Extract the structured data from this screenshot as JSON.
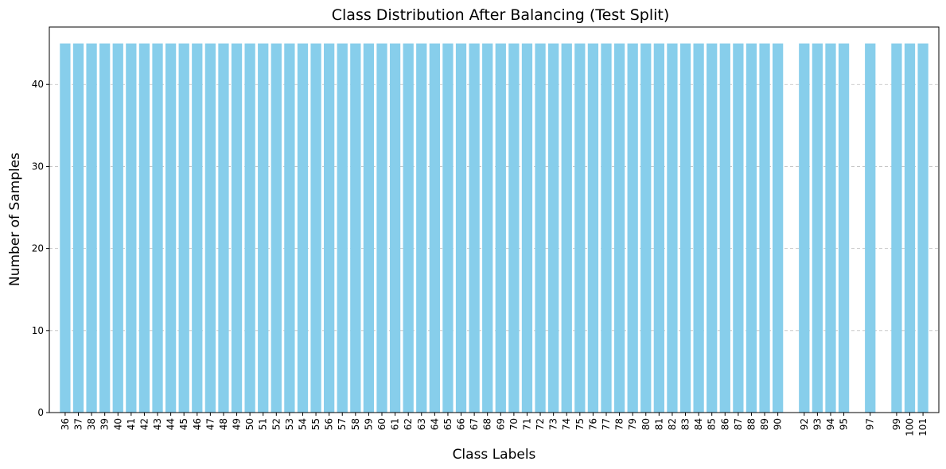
{
  "chart_data": {
    "type": "bar",
    "title": "Class Distribution After Balancing (Test Split)",
    "xlabel": "Class Labels",
    "ylabel": "Number of Samples",
    "ylim": [
      0,
      47
    ],
    "yticks": [
      0,
      10,
      20,
      30,
      40
    ],
    "x": [
      36,
      37,
      38,
      39,
      40,
      41,
      42,
      43,
      44,
      45,
      46,
      47,
      48,
      49,
      50,
      51,
      52,
      53,
      54,
      55,
      56,
      57,
      58,
      59,
      60,
      61,
      62,
      63,
      64,
      65,
      66,
      67,
      68,
      69,
      70,
      71,
      72,
      73,
      74,
      75,
      76,
      77,
      78,
      79,
      80,
      81,
      82,
      83,
      84,
      85,
      86,
      87,
      88,
      89,
      90,
      92,
      93,
      94,
      95,
      97,
      99,
      100,
      101
    ],
    "values": [
      45,
      45,
      45,
      45,
      45,
      45,
      45,
      45,
      45,
      45,
      45,
      45,
      45,
      45,
      45,
      45,
      45,
      45,
      45,
      45,
      45,
      45,
      45,
      45,
      45,
      45,
      45,
      45,
      45,
      45,
      45,
      45,
      45,
      45,
      45,
      45,
      45,
      45,
      45,
      45,
      45,
      45,
      45,
      45,
      45,
      45,
      45,
      45,
      45,
      45,
      45,
      45,
      45,
      45,
      45,
      45,
      45,
      45,
      45,
      45,
      45,
      45,
      45
    ],
    "grid": "y-dashed",
    "bar_color": "#87ceeb"
  }
}
